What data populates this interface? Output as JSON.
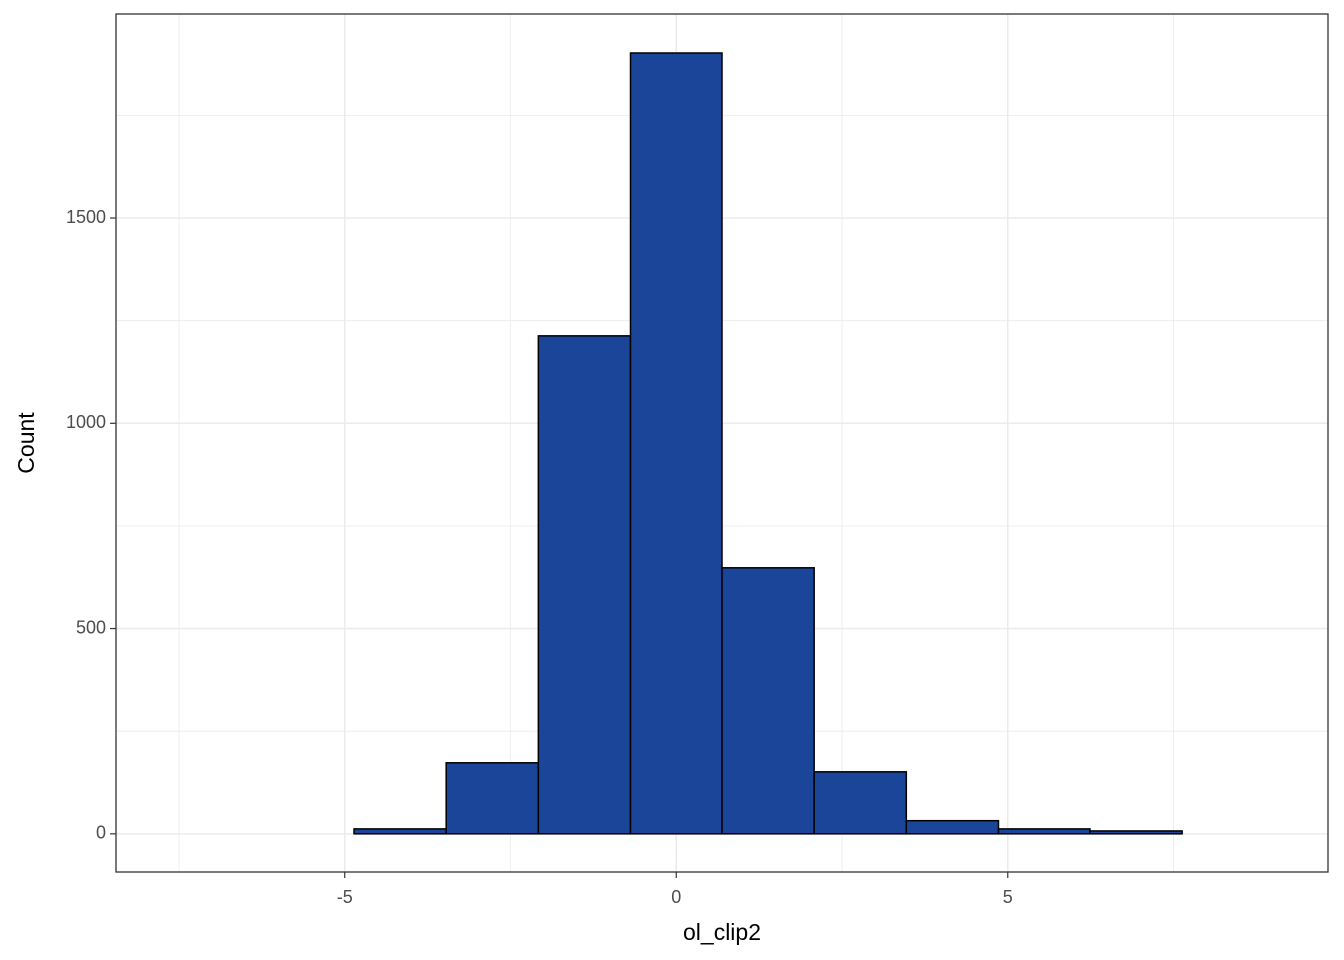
{
  "chart_data": {
    "type": "histogram",
    "x_label": "ol_clip2",
    "y_label": "Count",
    "bins": [
      -7.63,
      -6.24,
      -4.86,
      -3.47,
      -2.08,
      -0.69,
      0.69,
      2.08,
      3.47,
      4.86,
      6.24,
      7.63,
      9.02
    ],
    "values": [
      0,
      0,
      12,
      173,
      1213,
      1902,
      648,
      151,
      32,
      12,
      7,
      0
    ],
    "color": "#1a4599",
    "edge_color": "#000000",
    "xlim": [
      -8.45,
      9.83
    ],
    "xticks": [
      -5,
      0,
      5
    ],
    "x_minor_grid": [
      -7.5,
      -2.5,
      2.5,
      7.5
    ],
    "ylim": [
      -93,
      1997
    ],
    "yticks": [
      0,
      500,
      1000,
      1500
    ],
    "y_minor_grid": [
      250,
      750,
      1250,
      1750
    ],
    "grid": true
  }
}
